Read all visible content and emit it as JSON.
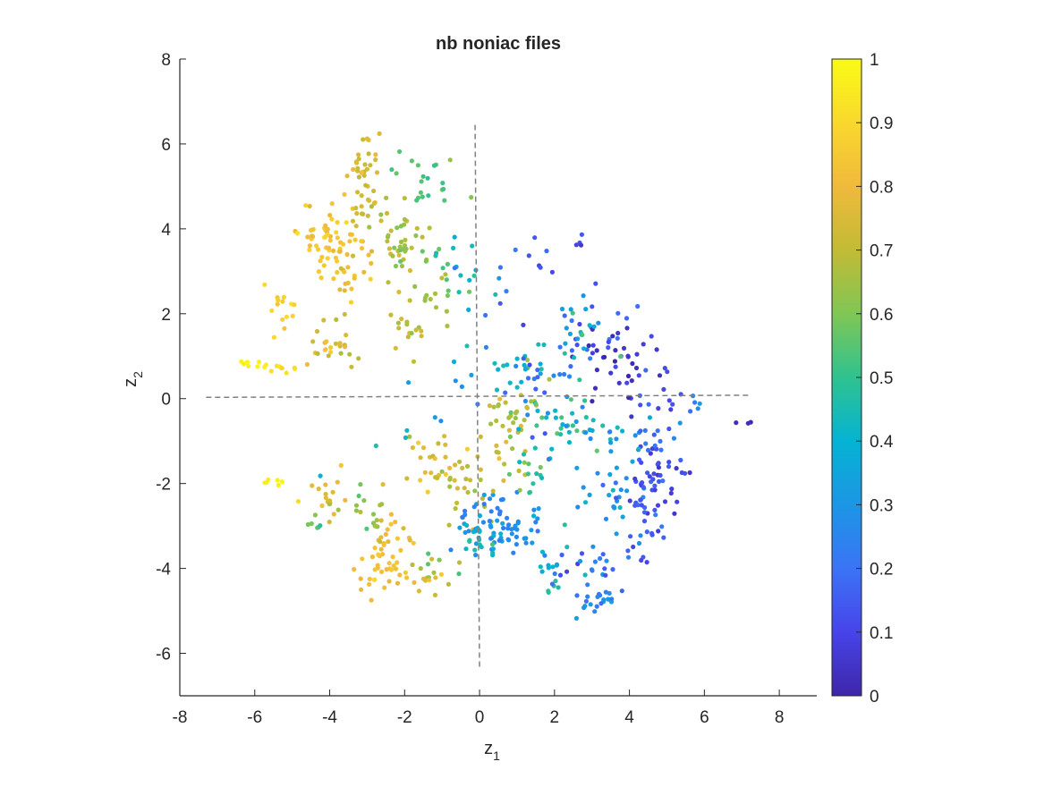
{
  "chart_data": {
    "type": "scatter",
    "title": "nb noniac files",
    "xlabel": "z",
    "xlabel_sub": "1",
    "ylabel": "z",
    "ylabel_sub": "2",
    "xlim": [
      -8,
      9
    ],
    "ylim": [
      -7,
      8
    ],
    "xticks": [
      -8,
      -6,
      -4,
      -2,
      0,
      2,
      4,
      6,
      8
    ],
    "yticks": [
      -6,
      -4,
      -2,
      0,
      2,
      4,
      6,
      8
    ],
    "grid": false,
    "legend": "none",
    "colorbar": {
      "label": "",
      "range": [
        0,
        1
      ],
      "ticks": [
        "0",
        "0.1",
        "0.2",
        "0.3",
        "0.4",
        "0.5",
        "0.6",
        "0.7",
        "0.8",
        "0.9",
        "1"
      ],
      "colormap": "parula",
      "stops": [
        "#3e26a8",
        "#4744e9",
        "#3b74f6",
        "#1c96e5",
        "#05b3d3",
        "#2fc28f",
        "#80c655",
        "#c2bb35",
        "#f0b93c",
        "#f9d82d",
        "#f9fb15"
      ]
    },
    "reference_lines": [
      {
        "x": [
          -7.3,
          7.2
        ],
        "y": [
          0.03,
          0.08
        ],
        "style": "dashed",
        "color": "#808080"
      },
      {
        "x": [
          -0.12,
          0.0
        ],
        "y": [
          6.45,
          -6.4
        ],
        "style": "dashed",
        "color": "#808080"
      }
    ],
    "point_groups": [
      {
        "cx": -6.0,
        "cy": 0.8,
        "sx": 0.28,
        "sy": 0.06,
        "n": 9,
        "c": 0.98,
        "cs": 0.01
      },
      {
        "cx": -5.3,
        "cy": 0.7,
        "sx": 0.25,
        "sy": 0.08,
        "n": 8,
        "c": 0.93,
        "cs": 0.02
      },
      {
        "cx": -5.6,
        "cy": -1.95,
        "sx": 0.25,
        "sy": 0.05,
        "n": 6,
        "c": 0.97,
        "cs": 0.01
      },
      {
        "cx": -5.3,
        "cy": 2.1,
        "sx": 0.18,
        "sy": 0.3,
        "n": 14,
        "c": 0.88,
        "cs": 0.03
      },
      {
        "cx": -4.1,
        "cy": 3.8,
        "sx": 0.35,
        "sy": 0.4,
        "n": 45,
        "c": 0.84,
        "cs": 0.04
      },
      {
        "cx": -3.3,
        "cy": 3.2,
        "sx": 0.35,
        "sy": 0.5,
        "n": 35,
        "c": 0.8,
        "cs": 0.05
      },
      {
        "cx": -3.0,
        "cy": 5.4,
        "sx": 0.25,
        "sy": 0.5,
        "n": 30,
        "c": 0.74,
        "cs": 0.03
      },
      {
        "cx": -2.8,
        "cy": 4.4,
        "sx": 0.3,
        "sy": 0.4,
        "n": 18,
        "c": 0.72,
        "cs": 0.04
      },
      {
        "cx": -4.0,
        "cy": 1.3,
        "sx": 0.35,
        "sy": 0.35,
        "n": 25,
        "c": 0.76,
        "cs": 0.05
      },
      {
        "cx": -4.0,
        "cy": -2.3,
        "sx": 0.35,
        "sy": 0.35,
        "n": 18,
        "c": 0.78,
        "cs": 0.05
      },
      {
        "cx": -4.5,
        "cy": -3.0,
        "sx": 0.15,
        "sy": 0.3,
        "n": 6,
        "c": 0.58,
        "cs": 0.04
      },
      {
        "cx": -2.6,
        "cy": -4.1,
        "sx": 0.35,
        "sy": 0.35,
        "n": 32,
        "c": 0.82,
        "cs": 0.03
      },
      {
        "cx": -2.2,
        "cy": -3.0,
        "sx": 0.35,
        "sy": 0.35,
        "n": 20,
        "c": 0.8,
        "cs": 0.04
      },
      {
        "cx": -2.9,
        "cy": -2.6,
        "sx": 0.35,
        "sy": 0.3,
        "n": 16,
        "c": 0.63,
        "cs": 0.05
      },
      {
        "cx": -2.0,
        "cy": 3.4,
        "sx": 0.35,
        "sy": 0.6,
        "n": 35,
        "c": 0.66,
        "cs": 0.05
      },
      {
        "cx": -1.4,
        "cy": 5.1,
        "sx": 0.4,
        "sy": 0.4,
        "n": 20,
        "c": 0.56,
        "cs": 0.04
      },
      {
        "cx": -1.2,
        "cy": 2.6,
        "sx": 0.35,
        "sy": 0.7,
        "n": 20,
        "c": 0.62,
        "cs": 0.06
      },
      {
        "cx": -1.9,
        "cy": 1.6,
        "sx": 0.3,
        "sy": 0.25,
        "n": 14,
        "c": 0.7,
        "cs": 0.04
      },
      {
        "cx": -0.6,
        "cy": 3.2,
        "sx": 0.3,
        "sy": 0.6,
        "n": 14,
        "c": 0.45,
        "cs": 0.07
      },
      {
        "cx": -1.0,
        "cy": -1.5,
        "sx": 0.5,
        "sy": 0.35,
        "n": 25,
        "c": 0.76,
        "cs": 0.05
      },
      {
        "cx": -1.1,
        "cy": -4.0,
        "sx": 0.35,
        "sy": 0.2,
        "n": 12,
        "c": 0.62,
        "cs": 0.05
      },
      {
        "cx": -1.3,
        "cy": -4.35,
        "sx": 0.25,
        "sy": 0.15,
        "n": 8,
        "c": 0.75,
        "cs": 0.04
      },
      {
        "cx": -0.5,
        "cy": -2.3,
        "sx": 0.35,
        "sy": 0.5,
        "n": 20,
        "c": 0.7,
        "cs": 0.05
      },
      {
        "cx": 0.6,
        "cy": -2.9,
        "sx": 0.55,
        "sy": 0.4,
        "n": 65,
        "c": 0.27,
        "cs": 0.04
      },
      {
        "cx": 0.05,
        "cy": -3.2,
        "sx": 0.25,
        "sy": 0.25,
        "n": 22,
        "c": 0.43,
        "cs": 0.07
      },
      {
        "cx": 0.6,
        "cy": -1.3,
        "sx": 0.4,
        "sy": 0.5,
        "n": 22,
        "c": 0.7,
        "cs": 0.05
      },
      {
        "cx": 0.9,
        "cy": -0.3,
        "sx": 0.4,
        "sy": 0.3,
        "n": 20,
        "c": 0.68,
        "cs": 0.05
      },
      {
        "cx": 1.0,
        "cy": 0.8,
        "sx": 0.5,
        "sy": 0.3,
        "n": 20,
        "c": 0.42,
        "cs": 0.08
      },
      {
        "cx": 2.0,
        "cy": -0.5,
        "sx": 0.6,
        "sy": 0.6,
        "n": 30,
        "c": 0.5,
        "cs": 0.1
      },
      {
        "cx": 1.6,
        "cy": 0.3,
        "sx": 0.5,
        "sy": 0.6,
        "n": 20,
        "c": 0.2,
        "cs": 0.06
      },
      {
        "cx": 1.8,
        "cy": -1.6,
        "sx": 0.5,
        "sy": 0.45,
        "n": 20,
        "c": 0.46,
        "cs": 0.08
      },
      {
        "cx": 2.0,
        "cy": -3.8,
        "sx": 0.4,
        "sy": 0.35,
        "n": 14,
        "c": 0.33,
        "cs": 0.07
      },
      {
        "cx": 1.9,
        "cy": -4.35,
        "sx": 0.15,
        "sy": 0.15,
        "n": 5,
        "c": 0.48,
        "cs": 0.02
      },
      {
        "cx": 3.1,
        "cy": -4.8,
        "sx": 0.35,
        "sy": 0.2,
        "n": 22,
        "c": 0.27,
        "cs": 0.05
      },
      {
        "cx": 3.3,
        "cy": -3.9,
        "sx": 0.5,
        "sy": 0.3,
        "n": 20,
        "c": 0.2,
        "cs": 0.05
      },
      {
        "cx": 3.4,
        "cy": -2.3,
        "sx": 0.5,
        "sy": 0.5,
        "n": 25,
        "c": 0.3,
        "cs": 0.07
      },
      {
        "cx": 4.3,
        "cy": -3.0,
        "sx": 0.3,
        "sy": 0.6,
        "n": 25,
        "c": 0.18,
        "cs": 0.05
      },
      {
        "cx": 4.7,
        "cy": -1.8,
        "sx": 0.35,
        "sy": 0.45,
        "n": 45,
        "c": 0.13,
        "cs": 0.05
      },
      {
        "cx": 4.3,
        "cy": -0.9,
        "sx": 0.45,
        "sy": 0.3,
        "n": 20,
        "c": 0.24,
        "cs": 0.07
      },
      {
        "cx": 3.0,
        "cy": -0.7,
        "sx": 0.5,
        "sy": 0.35,
        "n": 14,
        "c": 0.38,
        "cs": 0.08
      },
      {
        "cx": 3.3,
        "cy": 1.3,
        "sx": 0.6,
        "sy": 0.45,
        "n": 35,
        "c": 0.12,
        "cs": 0.07
      },
      {
        "cx": 2.6,
        "cy": 1.6,
        "sx": 0.35,
        "sy": 0.5,
        "n": 18,
        "c": 0.36,
        "cs": 0.1
      },
      {
        "cx": 3.8,
        "cy": 0.8,
        "sx": 0.45,
        "sy": 0.4,
        "n": 18,
        "c": 0.05,
        "cs": 0.03
      },
      {
        "cx": 4.8,
        "cy": 0.1,
        "sx": 0.35,
        "sy": 0.35,
        "n": 14,
        "c": 0.1,
        "cs": 0.05
      },
      {
        "cx": 5.8,
        "cy": -0.1,
        "sx": 0.3,
        "sy": 0.2,
        "n": 5,
        "c": 0.25,
        "cs": 0.05
      },
      {
        "cx": 7.0,
        "cy": -0.52,
        "sx": 0.12,
        "sy": 0.05,
        "n": 3,
        "c": 0.02,
        "cs": 0.01
      },
      {
        "cx": 1.4,
        "cy": 3.3,
        "sx": 0.4,
        "sy": 0.2,
        "n": 8,
        "c": 0.16,
        "cs": 0.05
      },
      {
        "cx": 2.7,
        "cy": 3.6,
        "sx": 0.2,
        "sy": 0.2,
        "n": 4,
        "c": 0.13,
        "cs": 0.03
      },
      {
        "cx": 0.5,
        "cy": 2.1,
        "sx": 0.5,
        "sy": 0.6,
        "n": 8,
        "c": 0.3,
        "cs": 0.1
      },
      {
        "cx": -0.3,
        "cy": 0.6,
        "sx": 0.25,
        "sy": 0.4,
        "n": 6,
        "c": 0.4,
        "cs": 0.1
      },
      {
        "cx": -1.9,
        "cy": -0.7,
        "sx": 0.6,
        "sy": 0.4,
        "n": 8,
        "c": 0.4,
        "cs": 0.1
      }
    ]
  }
}
